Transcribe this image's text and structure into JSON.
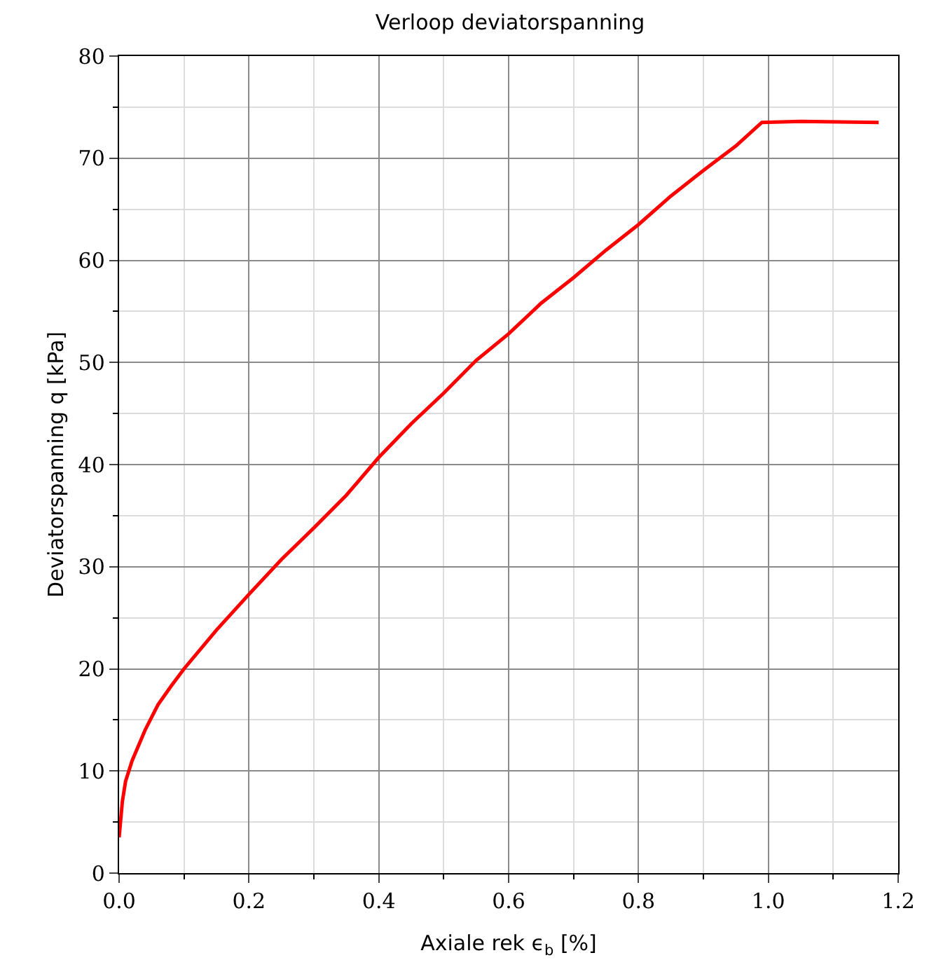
{
  "chart_data": {
    "type": "line",
    "title": "Verloop deviatorspanning",
    "xlabel": "Axiale rek ϵ$_{b}$ [%]",
    "ylabel": "Deviatorspanning q [kPa]",
    "x": [
      0,
      0.005,
      0.01,
      0.02,
      0.04,
      0.06,
      0.08,
      0.1,
      0.15,
      0.2,
      0.25,
      0.3,
      0.35,
      0.4,
      0.45,
      0.5,
      0.55,
      0.6,
      0.65,
      0.7,
      0.75,
      0.8,
      0.85,
      0.9,
      0.95,
      0.99,
      1.05,
      1.17
    ],
    "series": [
      {
        "color": "#ff0000",
        "values": [
          3.5,
          7,
          9,
          11,
          14,
          16.5,
          18.3,
          20,
          23.8,
          27.3,
          30.7,
          33.8,
          37,
          40.7,
          44,
          47,
          50.2,
          52.8,
          55.8,
          58.3,
          61,
          63.5,
          66.3,
          68.8,
          71.2,
          73.5,
          73.6,
          73.5
        ]
      }
    ],
    "xlim": [
      0,
      1.2
    ],
    "ylim": [
      0,
      80
    ],
    "xticks": [
      {
        "value": 0,
        "label": "0.0"
      },
      {
        "value": 0.1,
        "label": null
      },
      {
        "value": 0.2,
        "label": "0.2"
      },
      {
        "value": 0.3,
        "label": null
      },
      {
        "value": 0.4,
        "label": "0.4"
      },
      {
        "value": 0.5,
        "label": null
      },
      {
        "value": 0.6,
        "label": "0.6"
      },
      {
        "value": 0.7,
        "label": null
      },
      {
        "value": 0.8,
        "label": "0.8"
      },
      {
        "value": 0.9,
        "label": null
      },
      {
        "value": 1.0,
        "label": "1.0"
      },
      {
        "value": 1.1,
        "label": null
      },
      {
        "value": 1.2,
        "label": "1.2"
      }
    ],
    "yticks": [
      0,
      {
        "value": 5,
        "label": null
      },
      10,
      {
        "value": 15,
        "label": null
      },
      20,
      {
        "value": 25,
        "label": null
      },
      30,
      {
        "value": 35,
        "label": null
      },
      40,
      {
        "value": 45,
        "label": null
      },
      50,
      {
        "value": 55,
        "label": null
      },
      60,
      {
        "value": 65,
        "label": null
      },
      70,
      {
        "value": 75,
        "label": null
      },
      80
    ],
    "grid": true,
    "marker": "none",
    "line_style": "solid"
  }
}
